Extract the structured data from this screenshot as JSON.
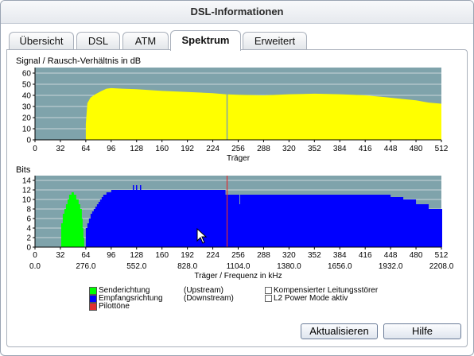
{
  "window": {
    "title": "DSL-Informationen"
  },
  "tabs": [
    {
      "label": "Übersicht",
      "active": false
    },
    {
      "label": "DSL",
      "active": false
    },
    {
      "label": "ATM",
      "active": false
    },
    {
      "label": "Spektrum",
      "active": true
    },
    {
      "label": "Erweitert",
      "active": false
    }
  ],
  "snr": {
    "label": "Signal / Rausch-Verhältnis in dB",
    "ytick_labels": [
      "0",
      "10",
      "20",
      "30",
      "40",
      "50",
      "60"
    ],
    "xtick_labels": [
      "0",
      "32",
      "64",
      "96",
      "128",
      "160",
      "192",
      "224",
      "256",
      "288",
      "320",
      "352",
      "384",
      "416",
      "448",
      "480",
      "512"
    ],
    "xlabel": "Träger"
  },
  "bits": {
    "label": "Bits",
    "ytick_labels": [
      "0",
      "2",
      "4",
      "6",
      "8",
      "10",
      "12",
      "14"
    ],
    "xtick_labels": [
      "0",
      "32",
      "64",
      "96",
      "128",
      "160",
      "192",
      "224",
      "256",
      "288",
      "320",
      "352",
      "384",
      "416",
      "448",
      "480",
      "512"
    ],
    "freq_labels": [
      "0.0",
      "276.0",
      "552.0",
      "828.0",
      "1104.0",
      "1380.0",
      "1656.0",
      "1932.0",
      "2208.0"
    ],
    "xlabel": "Träger / Frequenz in kHz"
  },
  "legend": {
    "upstream": "Senderichtung",
    "upstream_note": "(Upstream)",
    "downstream": "Empfangsrichtung",
    "downstream_note": "(Downstream)",
    "pilot": "Pilottöne",
    "crosstalk": "Kompensierter Leitungsstörer",
    "l2": "L2 Power Mode aktiv"
  },
  "buttons": {
    "refresh": "Aktualisieren",
    "help": "Hilfe"
  },
  "colors": {
    "plot_bg": "#7fa3ab",
    "grid": "#c9d6d9",
    "snr": "#ffff00",
    "upstream": "#00ff00",
    "downstream": "#0000ff",
    "pilot": "#e03030"
  },
  "chart_data": [
    {
      "type": "area",
      "title": "Signal / Rausch-Verhältnis in dB",
      "xlabel": "Träger",
      "ylabel": "",
      "xlim": [
        0,
        512
      ],
      "ylim": [
        0,
        65
      ],
      "grid": true,
      "x": [
        64,
        66,
        70,
        76,
        84,
        90,
        96,
        110,
        128,
        160,
        192,
        224,
        240,
        256,
        288,
        320,
        352,
        384,
        400,
        416,
        440,
        460,
        480,
        496,
        512
      ],
      "y": [
        14,
        33,
        38,
        41,
        44,
        46,
        46.5,
        46,
        45.5,
        44,
        43,
        42,
        41,
        40.5,
        40,
        41,
        41.5,
        41,
        40.5,
        40,
        38.5,
        37,
        35.5,
        33.5,
        32.5
      ]
    },
    {
      "type": "bar",
      "title": "Bits",
      "xlabel": "Träger / Frequenz in kHz",
      "ylabel": "",
      "xlim": [
        0,
        512
      ],
      "ylim": [
        0,
        15
      ],
      "grid": true,
      "series": [
        {
          "name": "Senderichtung",
          "x": [
            33,
            35,
            37,
            39,
            41,
            43,
            46,
            49,
            52,
            55,
            57,
            59,
            60,
            61
          ],
          "y": [
            5,
            7,
            8,
            9,
            10,
            11,
            11.5,
            11,
            10,
            9,
            8,
            6,
            4,
            2
          ]
        },
        {
          "name": "Empfangsrichtung",
          "x": [
            64,
            66,
            68,
            70,
            72,
            74,
            76,
            78,
            80,
            82,
            84,
            86,
            90,
            96,
            104,
            112,
            128,
            160,
            192,
            224,
            240,
            256,
            288,
            320,
            352,
            384,
            416,
            432,
            448,
            464,
            480,
            496,
            512
          ],
          "y": [
            4,
            5,
            6,
            7,
            7.5,
            8,
            8.5,
            9,
            9.5,
            10,
            10.5,
            11,
            11.5,
            12,
            12,
            12,
            12,
            12,
            12,
            12,
            11,
            11,
            11,
            11,
            11,
            11,
            11,
            11,
            10.5,
            10,
            9,
            8,
            8
          ]
        },
        {
          "name": "Pilottöne",
          "x": [
            242
          ],
          "y": [
            15
          ]
        }
      ]
    }
  ]
}
